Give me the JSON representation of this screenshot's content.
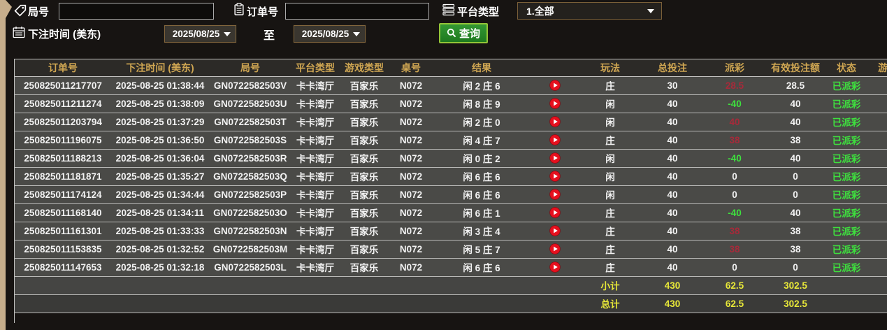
{
  "filters": {
    "game_no_label": "局号",
    "game_no_value": "",
    "order_no_label": "订单号",
    "order_no_value": "",
    "platform_type_label": "平台类型",
    "platform_type_value": "1.全部",
    "bet_time_label": "下注时间 (美东)",
    "date_from": "2025/08/25",
    "to_label": "至",
    "date_to": "2025/08/25",
    "query_label": "查询"
  },
  "table": {
    "columns": [
      "订单号",
      "下注时间 (美东)",
      "局号",
      "平台类型",
      "游戏类型",
      "桌号",
      "结果",
      "",
      "玩法",
      "总投注",
      "派彩",
      "有效投注额",
      "状态",
      "游"
    ],
    "rows": [
      {
        "order_no": "250825011217707",
        "bet_time": "2025-08-25 01:38:44",
        "round_no": "GN0722582503V",
        "platform": "卡卡湾厅",
        "game_type": "百家乐",
        "table_no": "N072",
        "result": "闲 2 庄 6",
        "bet": "庄",
        "total_bet": "30",
        "payout": "28.5",
        "payout_tone": "win",
        "valid_bet": "28.5",
        "status": "已派彩"
      },
      {
        "order_no": "250825011211274",
        "bet_time": "2025-08-25 01:38:09",
        "round_no": "GN0722582503U",
        "platform": "卡卡湾厅",
        "game_type": "百家乐",
        "table_no": "N072",
        "result": "闲 8 庄 9",
        "bet": "闲",
        "total_bet": "40",
        "payout": "-40",
        "payout_tone": "lose",
        "valid_bet": "40",
        "status": "已派彩"
      },
      {
        "order_no": "250825011203794",
        "bet_time": "2025-08-25 01:37:29",
        "round_no": "GN0722582503T",
        "platform": "卡卡湾厅",
        "game_type": "百家乐",
        "table_no": "N072",
        "result": "闲 2 庄 0",
        "bet": "闲",
        "total_bet": "40",
        "payout": "40",
        "payout_tone": "win",
        "valid_bet": "40",
        "status": "已派彩"
      },
      {
        "order_no": "250825011196075",
        "bet_time": "2025-08-25 01:36:50",
        "round_no": "GN0722582503S",
        "platform": "卡卡湾厅",
        "game_type": "百家乐",
        "table_no": "N072",
        "result": "闲 4 庄 7",
        "bet": "庄",
        "total_bet": "40",
        "payout": "38",
        "payout_tone": "win",
        "valid_bet": "38",
        "status": "已派彩"
      },
      {
        "order_no": "250825011188213",
        "bet_time": "2025-08-25 01:36:04",
        "round_no": "GN0722582503R",
        "platform": "卡卡湾厅",
        "game_type": "百家乐",
        "table_no": "N072",
        "result": "闲 0 庄 2",
        "bet": "闲",
        "total_bet": "40",
        "payout": "-40",
        "payout_tone": "lose",
        "valid_bet": "40",
        "status": "已派彩"
      },
      {
        "order_no": "250825011181871",
        "bet_time": "2025-08-25 01:35:27",
        "round_no": "GN0722582503Q",
        "platform": "卡卡湾厅",
        "game_type": "百家乐",
        "table_no": "N072",
        "result": "闲 6 庄 6",
        "bet": "闲",
        "total_bet": "40",
        "payout": "0",
        "payout_tone": "tie",
        "valid_bet": "0",
        "status": "已派彩"
      },
      {
        "order_no": "250825011174124",
        "bet_time": "2025-08-25 01:34:44",
        "round_no": "GN0722582503P",
        "platform": "卡卡湾厅",
        "game_type": "百家乐",
        "table_no": "N072",
        "result": "闲 6 庄 6",
        "bet": "闲",
        "total_bet": "40",
        "payout": "0",
        "payout_tone": "tie",
        "valid_bet": "0",
        "status": "已派彩"
      },
      {
        "order_no": "250825011168140",
        "bet_time": "2025-08-25 01:34:11",
        "round_no": "GN0722582503O",
        "platform": "卡卡湾厅",
        "game_type": "百家乐",
        "table_no": "N072",
        "result": "闲 6 庄 1",
        "bet": "庄",
        "total_bet": "40",
        "payout": "-40",
        "payout_tone": "lose",
        "valid_bet": "40",
        "status": "已派彩"
      },
      {
        "order_no": "250825011161301",
        "bet_time": "2025-08-25 01:33:33",
        "round_no": "GN0722582503N",
        "platform": "卡卡湾厅",
        "game_type": "百家乐",
        "table_no": "N072",
        "result": "闲 3 庄 4",
        "bet": "庄",
        "total_bet": "40",
        "payout": "38",
        "payout_tone": "win",
        "valid_bet": "38",
        "status": "已派彩"
      },
      {
        "order_no": "250825011153835",
        "bet_time": "2025-08-25 01:32:52",
        "round_no": "GN0722582503M",
        "platform": "卡卡湾厅",
        "game_type": "百家乐",
        "table_no": "N072",
        "result": "闲 5 庄 7",
        "bet": "庄",
        "total_bet": "40",
        "payout": "38",
        "payout_tone": "win",
        "valid_bet": "38",
        "status": "已派彩"
      },
      {
        "order_no": "250825011147653",
        "bet_time": "2025-08-25 01:32:18",
        "round_no": "GN0722582503L",
        "platform": "卡卡湾厅",
        "game_type": "百家乐",
        "table_no": "N072",
        "result": "闲 6 庄 6",
        "bet": "庄",
        "total_bet": "40",
        "payout": "0",
        "payout_tone": "tie",
        "valid_bet": "0",
        "status": "已派彩"
      }
    ],
    "summary": {
      "subtotal_label": "小计",
      "subtotal": {
        "total_bet": "430",
        "payout": "62.5",
        "valid_bet": "302.5"
      },
      "total_label": "总计",
      "total": {
        "total_bet": "430",
        "payout": "62.5",
        "valid_bet": "302.5"
      }
    }
  },
  "colors": {
    "header_gold": "#cfa652",
    "win_red": "#a62a3a",
    "lose_green": "#3ee03e",
    "summary_yellow": "#e8e838",
    "query_button_green": "#1e7a1f",
    "play_icon_red": "#e6101e",
    "row_bg": "#4a4a47",
    "side_strip_tan": "#c6ad8b"
  }
}
